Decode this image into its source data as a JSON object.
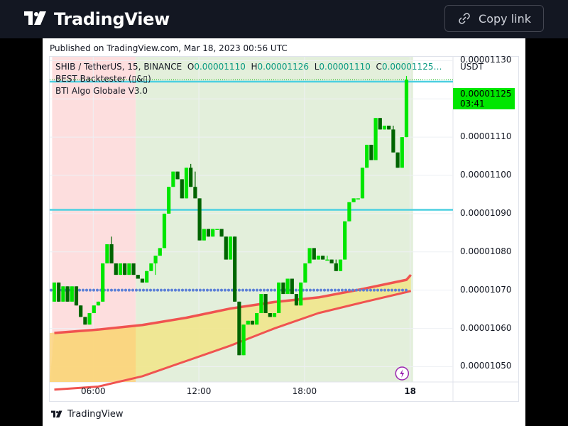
{
  "header": {
    "brand": "TradingView",
    "copy_button_label": "Copy link"
  },
  "published": "Published on TradingView.com, Mar 18, 2023 00:56 UTC",
  "legend": {
    "symbol_line": "SHIB / TetherUS, 15, BINANCE",
    "open_key": "O",
    "open": "0.00001110",
    "high_key": "H",
    "high": "0.00001126",
    "low_key": "L",
    "low": "0.00001110",
    "close_key": "C",
    "close": "0.00001125…",
    "indicator_1": "BEST Backtester (▯&▯)",
    "indicator_2": "BTI Algo Globale V3.0"
  },
  "price_axis": {
    "currency": "USDT",
    "last_price": "0.00001125",
    "countdown": "03:41"
  },
  "footer": {
    "brand": "TradingView"
  },
  "colors": {
    "bull": "#00e600",
    "bear": "#006400",
    "level_line": "#4dd0e1",
    "moving_average": "#f05350",
    "dots": "#5b7fd6",
    "bg_red": "#fddede",
    "bg_green": "#e3efdb",
    "fill_yellow": "#efe68c"
  },
  "chart_data": {
    "type": "candlestick",
    "symbol": "SHIB / TetherUS",
    "interval": "15",
    "exchange": "BINANCE",
    "ylim": [
      1.046e-05,
      1.131e-05
    ],
    "y_ticks": [
      "0.00001050",
      "0.00001060",
      "0.00001070",
      "0.00001080",
      "0.00001090",
      "0.00001100",
      "0.00001110",
      "0.00001120",
      "0.00001130"
    ],
    "x_ticks": [
      {
        "label": "06:00",
        "bar": 9
      },
      {
        "label": "12:00",
        "bar": 33
      },
      {
        "label": "18:00",
        "bar": 57
      },
      {
        "label": "18",
        "bar": 81
      }
    ],
    "horizontal_levels": [
      1.1245e-05,
      1.091e-05
    ],
    "candles": [
      [
        1.067e-05,
        1.072e-05,
        1.067e-05,
        1.072e-05
      ],
      [
        1.072e-05,
        1.072e-05,
        1.067e-05,
        1.067e-05
      ],
      [
        1.067e-05,
        1.071e-05,
        1.067e-05,
        1.071e-05
      ],
      [
        1.071e-05,
        1.071e-05,
        1.067e-05,
        1.067e-05
      ],
      [
        1.067e-05,
        1.071e-05,
        1.067e-05,
        1.071e-05
      ],
      [
        1.071e-05,
        1.071e-05,
        1.066e-05,
        1.066e-05
      ],
      [
        1.066e-05,
        1.066e-05,
        1.063e-05,
        1.063e-05
      ],
      [
        1.063e-05,
        1.063e-05,
        1.061e-05,
        1.061e-05
      ],
      [
        1.061e-05,
        1.064e-05,
        1.061e-05,
        1.064e-05
      ],
      [
        1.064e-05,
        1.066e-05,
        1.064e-05,
        1.066e-05
      ],
      [
        1.066e-05,
        1.067e-05,
        1.066e-05,
        1.067e-05
      ],
      [
        1.067e-05,
        1.077e-05,
        1.067e-05,
        1.077e-05
      ],
      [
        1.077e-05,
        1.082e-05,
        1.077e-05,
        1.082e-05
      ],
      [
        1.082e-05,
        1.084e-05,
        1.077e-05,
        1.077e-05
      ],
      [
        1.077e-05,
        1.077e-05,
        1.074e-05,
        1.074e-05
      ],
      [
        1.074e-05,
        1.077e-05,
        1.074e-05,
        1.077e-05
      ],
      [
        1.077e-05,
        1.077e-05,
        1.074e-05,
        1.074e-05
      ],
      [
        1.074e-05,
        1.077e-05,
        1.074e-05,
        1.077e-05
      ],
      [
        1.077e-05,
        1.077e-05,
        1.074e-05,
        1.074e-05
      ],
      [
        1.074e-05,
        1.074e-05,
        1.073e-05,
        1.073e-05
      ],
      [
        1.073e-05,
        1.073e-05,
        1.072e-05,
        1.072e-05
      ],
      [
        1.072e-05,
        1.075e-05,
        1.072e-05,
        1.075e-05
      ],
      [
        1.075e-05,
        1.077e-05,
        1.075e-05,
        1.077e-05
      ],
      [
        1.077e-05,
        1.079e-05,
        1.074e-05,
        1.079e-05
      ],
      [
        1.079e-05,
        1.081e-05,
        1.079e-05,
        1.081e-05
      ],
      [
        1.081e-05,
        1.09e-05,
        1.081e-05,
        1.09e-05
      ],
      [
        1.09e-05,
        1.097e-05,
        1.09e-05,
        1.097e-05
      ],
      [
        1.097e-05,
        1.101e-05,
        1.097e-05,
        1.101e-05
      ],
      [
        1.101e-05,
        1.101e-05,
        1.099e-05,
        1.099e-05
      ],
      [
        1.099e-05,
        1.099e-05,
        1.094e-05,
        1.094e-05
      ],
      [
        1.094e-05,
        1.102e-05,
        1.094e-05,
        1.102e-05
      ],
      [
        1.102e-05,
        1.103e-05,
        1.097e-05,
        1.097e-05
      ],
      [
        1.097e-05,
        1.101e-05,
        1.094e-05,
        1.094e-05
      ],
      [
        1.094e-05,
        1.094e-05,
        1.083e-05,
        1.083e-05
      ],
      [
        1.083e-05,
        1.086e-05,
        1.083e-05,
        1.086e-05
      ],
      [
        1.086e-05,
        1.086e-05,
        1.084e-05,
        1.084e-05
      ],
      [
        1.084e-05,
        1.086e-05,
        1.084e-05,
        1.086e-05
      ],
      [
        1.086e-05,
        1.086e-05,
        1.086e-05,
        1.086e-05
      ],
      [
        1.086e-05,
        1.086e-05,
        1.084e-05,
        1.084e-05
      ],
      [
        1.084e-05,
        1.084e-05,
        1.078e-05,
        1.078e-05
      ],
      [
        1.078e-05,
        1.084e-05,
        1.078e-05,
        1.084e-05
      ],
      [
        1.084e-05,
        1.084e-05,
        1.067e-05,
        1.067e-05
      ],
      [
        1.067e-05,
        1.067e-05,
        1.053e-05,
        1.053e-05
      ],
      [
        1.053e-05,
        1.061e-05,
        1.053e-05,
        1.061e-05
      ],
      [
        1.061e-05,
        1.062e-05,
        1.061e-05,
        1.062e-05
      ],
      [
        1.062e-05,
        1.062e-05,
        1.061e-05,
        1.061e-05
      ],
      [
        1.061e-05,
        1.064e-05,
        1.061e-05,
        1.064e-05
      ],
      [
        1.064e-05,
        1.069e-05,
        1.064e-05,
        1.069e-05
      ],
      [
        1.069e-05,
        1.069e-05,
        1.064e-05,
        1.064e-05
      ],
      [
        1.064e-05,
        1.064e-05,
        1.063e-05,
        1.063e-05
      ],
      [
        1.063e-05,
        1.064e-05,
        1.063e-05,
        1.064e-05
      ],
      [
        1.064e-05,
        1.072e-05,
        1.064e-05,
        1.072e-05
      ],
      [
        1.072e-05,
        1.072e-05,
        1.069e-05,
        1.069e-05
      ],
      [
        1.069e-05,
        1.073e-05,
        1.069e-05,
        1.073e-05
      ],
      [
        1.073e-05,
        1.073e-05,
        1.069e-05,
        1.069e-05
      ],
      [
        1.069e-05,
        1.069e-05,
        1.066e-05,
        1.066e-05
      ],
      [
        1.066e-05,
        1.072e-05,
        1.066e-05,
        1.072e-05
      ],
      [
        1.072e-05,
        1.077e-05,
        1.072e-05,
        1.077e-05
      ],
      [
        1.077e-05,
        1.081e-05,
        1.077e-05,
        1.081e-05
      ],
      [
        1.081e-05,
        1.081e-05,
        1.078e-05,
        1.078e-05
      ],
      [
        1.078e-05,
        1.079e-05,
        1.078e-05,
        1.079e-05
      ],
      [
        1.079e-05,
        1.079e-05,
        1.078e-05,
        1.078e-05
      ],
      [
        1.078e-05,
        1.079e-05,
        1.078e-05,
        1.078e-05
      ],
      [
        1.078e-05,
        1.078e-05,
        1.077e-05,
        1.077e-05
      ],
      [
        1.077e-05,
        1.078e-05,
        1.075e-05,
        1.075e-05
      ],
      [
        1.075e-05,
        1.078e-05,
        1.075e-05,
        1.078e-05
      ],
      [
        1.078e-05,
        1.088e-05,
        1.078e-05,
        1.088e-05
      ],
      [
        1.088e-05,
        1.093e-05,
        1.088e-05,
        1.093e-05
      ],
      [
        1.093e-05,
        1.094e-05,
        1.093e-05,
        1.094e-05
      ],
      [
        1.094e-05,
        1.094e-05,
        1.094e-05,
        1.094e-05
      ],
      [
        1.094e-05,
        1.102e-05,
        1.094e-05,
        1.102e-05
      ],
      [
        1.102e-05,
        1.108e-05,
        1.102e-05,
        1.108e-05
      ],
      [
        1.108e-05,
        1.108e-05,
        1.104e-05,
        1.104e-05
      ],
      [
        1.104e-05,
        1.115e-05,
        1.104e-05,
        1.115e-05
      ],
      [
        1.115e-05,
        1.115e-05,
        1.112e-05,
        1.112e-05
      ],
      [
        1.112e-05,
        1.113e-05,
        1.112e-05,
        1.113e-05
      ],
      [
        1.113e-05,
        1.113e-05,
        1.112e-05,
        1.112e-05
      ],
      [
        1.112e-05,
        1.113e-05,
        1.106e-05,
        1.106e-05
      ],
      [
        1.106e-05,
        1.106e-05,
        1.102e-05,
        1.102e-05
      ],
      [
        1.102e-05,
        1.11e-05,
        1.102e-05,
        1.11e-05
      ],
      [
        1.11e-05,
        1.126e-05,
        1.11e-05,
        1.125e-05
      ]
    ],
    "moving_average": [
      [
        0,
        1.0588e-05
      ],
      [
        10,
        1.0597e-05
      ],
      [
        20,
        1.0609e-05
      ],
      [
        30,
        1.0628e-05
      ],
      [
        40,
        1.0652e-05
      ],
      [
        50,
        1.0669e-05
      ],
      [
        60,
        1.0681e-05
      ],
      [
        70,
        1.0703e-05
      ],
      [
        80,
        1.0727e-05
      ],
      [
        81,
        1.074e-05
      ]
    ],
    "lower_band": [
      [
        0,
        1.044e-05
      ],
      [
        10,
        1.0448e-05
      ],
      [
        20,
        1.0475e-05
      ],
      [
        30,
        1.0515e-05
      ],
      [
        40,
        1.0555e-05
      ],
      [
        50,
        1.06e-05
      ],
      [
        60,
        1.064e-05
      ],
      [
        70,
        1.0668e-05
      ],
      [
        80,
        1.0695e-05
      ],
      [
        81,
        1.0698e-05
      ]
    ],
    "dotted_level": 1.07e-05,
    "dotted_from_bar": 0,
    "background_zones": [
      {
        "color": "red",
        "from_bar": 0,
        "to_bar": 19
      },
      {
        "color": "green",
        "from_bar": 19,
        "to_bar": 82
      }
    ]
  }
}
